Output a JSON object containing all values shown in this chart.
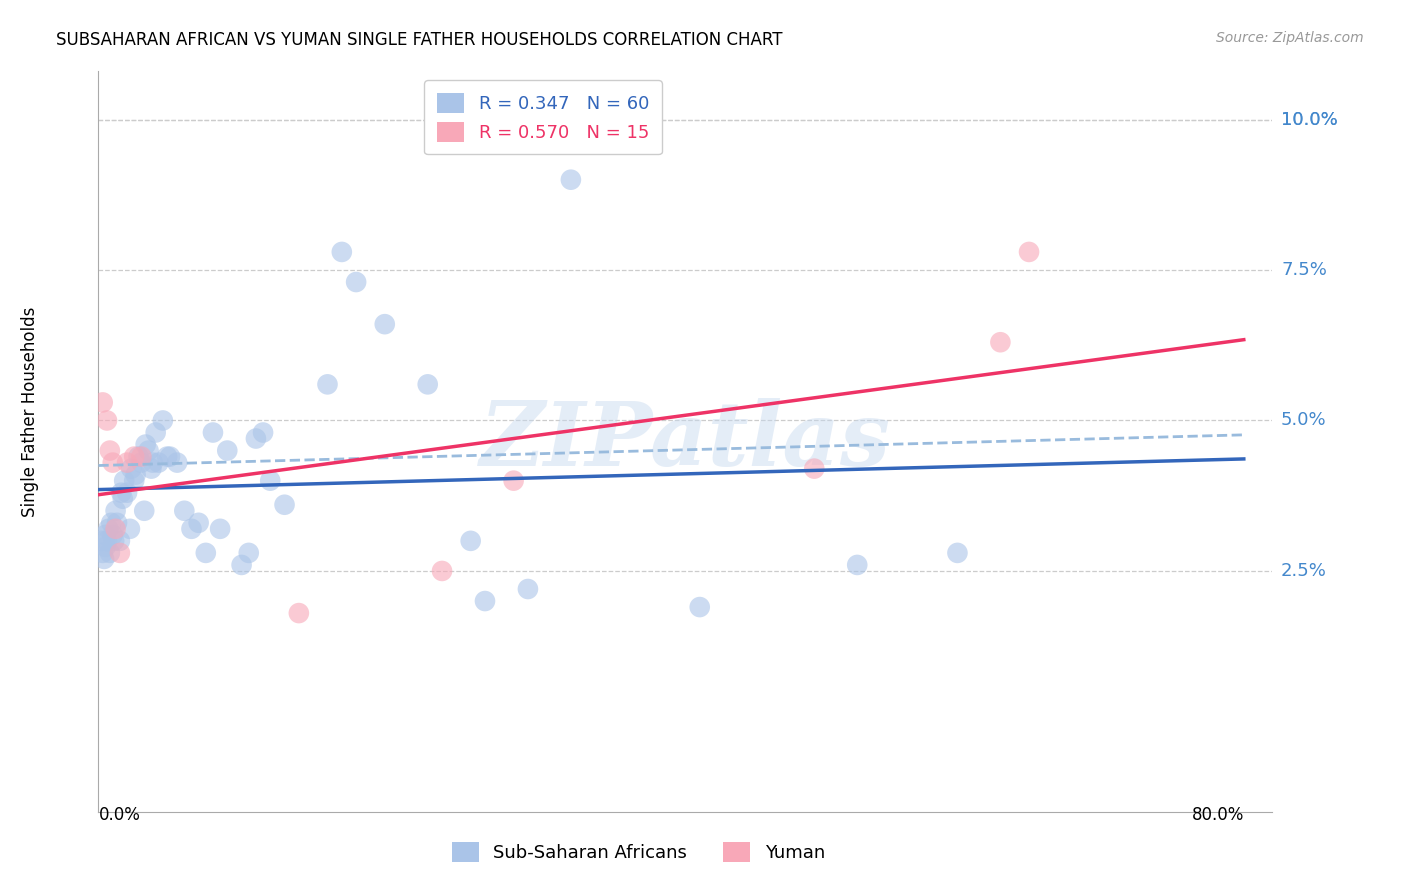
{
  "title": "SUBSAHARAN AFRICAN VS YUMAN SINGLE FATHER HOUSEHOLDS CORRELATION CHART",
  "source": "Source: ZipAtlas.com",
  "ylabel": "Single Father Households",
  "ytick_values": [
    0.025,
    0.05,
    0.075,
    0.1
  ],
  "ytick_labels": [
    "2.5%",
    "5.0%",
    "7.5%",
    "10.0%"
  ],
  "xlim": [
    0.0,
    0.82
  ],
  "ylim": [
    -0.015,
    0.108
  ],
  "plot_xlim": [
    0.0,
    0.8
  ],
  "watermark": "ZIPatlas",
  "blue_color": "#aac4e8",
  "pink_color": "#f8a8b8",
  "blue_line_color": "#3366bb",
  "pink_line_color": "#ee3366",
  "dashed_line_color": "#99bbdd",
  "blue_legend": "R = 0.347   N = 60",
  "pink_legend": "R = 0.570   N = 15",
  "blue_label": "Sub-Saharan Africans",
  "pink_label": "Yuman",
  "blue_points": [
    [
      0.002,
      0.03
    ],
    [
      0.003,
      0.028
    ],
    [
      0.004,
      0.027
    ],
    [
      0.005,
      0.031
    ],
    [
      0.005,
      0.029
    ],
    [
      0.006,
      0.03
    ],
    [
      0.007,
      0.032
    ],
    [
      0.008,
      0.028
    ],
    [
      0.009,
      0.033
    ],
    [
      0.01,
      0.031
    ],
    [
      0.011,
      0.03
    ],
    [
      0.012,
      0.035
    ],
    [
      0.013,
      0.033
    ],
    [
      0.015,
      0.03
    ],
    [
      0.016,
      0.038
    ],
    [
      0.017,
      0.037
    ],
    [
      0.018,
      0.04
    ],
    [
      0.02,
      0.038
    ],
    [
      0.022,
      0.032
    ],
    [
      0.023,
      0.042
    ],
    [
      0.025,
      0.04
    ],
    [
      0.026,
      0.041
    ],
    [
      0.028,
      0.044
    ],
    [
      0.03,
      0.043
    ],
    [
      0.032,
      0.035
    ],
    [
      0.033,
      0.046
    ],
    [
      0.035,
      0.045
    ],
    [
      0.037,
      0.042
    ],
    [
      0.038,
      0.043
    ],
    [
      0.04,
      0.048
    ],
    [
      0.042,
      0.043
    ],
    [
      0.045,
      0.05
    ],
    [
      0.048,
      0.044
    ],
    [
      0.05,
      0.044
    ],
    [
      0.055,
      0.043
    ],
    [
      0.06,
      0.035
    ],
    [
      0.065,
      0.032
    ],
    [
      0.07,
      0.033
    ],
    [
      0.075,
      0.028
    ],
    [
      0.08,
      0.048
    ],
    [
      0.085,
      0.032
    ],
    [
      0.09,
      0.045
    ],
    [
      0.1,
      0.026
    ],
    [
      0.105,
      0.028
    ],
    [
      0.11,
      0.047
    ],
    [
      0.115,
      0.048
    ],
    [
      0.12,
      0.04
    ],
    [
      0.13,
      0.036
    ],
    [
      0.16,
      0.056
    ],
    [
      0.17,
      0.078
    ],
    [
      0.18,
      0.073
    ],
    [
      0.2,
      0.066
    ],
    [
      0.23,
      0.056
    ],
    [
      0.26,
      0.03
    ],
    [
      0.27,
      0.02
    ],
    [
      0.3,
      0.022
    ],
    [
      0.33,
      0.09
    ],
    [
      0.42,
      0.019
    ],
    [
      0.53,
      0.026
    ],
    [
      0.6,
      0.028
    ]
  ],
  "pink_points": [
    [
      0.003,
      0.053
    ],
    [
      0.006,
      0.05
    ],
    [
      0.008,
      0.045
    ],
    [
      0.01,
      0.043
    ],
    [
      0.012,
      0.032
    ],
    [
      0.015,
      0.028
    ],
    [
      0.02,
      0.043
    ],
    [
      0.025,
      0.044
    ],
    [
      0.03,
      0.044
    ],
    [
      0.14,
      0.018
    ],
    [
      0.24,
      0.025
    ],
    [
      0.29,
      0.04
    ],
    [
      0.5,
      0.042
    ],
    [
      0.63,
      0.063
    ],
    [
      0.65,
      0.078
    ]
  ]
}
